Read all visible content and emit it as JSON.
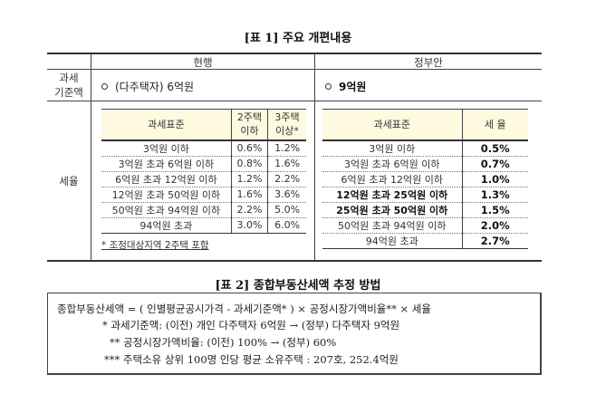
{
  "table1": {
    "title": "[표 1] 주요 개편내용",
    "columns": {
      "label": "",
      "current": "현행",
      "proposed": "정부안"
    },
    "base_row": {
      "label_line1": "과세",
      "label_line2": "기준액",
      "current": "(다주택자) 6억원",
      "proposed": "9억원"
    },
    "rate_row": {
      "label": "세율",
      "current": {
        "headers": {
          "standard": "과세표준",
          "two_line1": "2주택",
          "two_line2": "이하",
          "three_line1": "3주택",
          "three_line2": "이상*"
        },
        "rows": [
          {
            "standard": "3억원 이하",
            "two": "0.6%",
            "three": "1.2%"
          },
          {
            "standard": "3억원 초과 6억원 이하",
            "two": "0.8%",
            "three": "1.6%"
          },
          {
            "standard": "6억원 초과 12억원 이하",
            "two": "1.2%",
            "three": "2.2%"
          },
          {
            "standard": "12억원 초과 50억원 이하",
            "two": "1.6%",
            "three": "3.6%"
          },
          {
            "standard": "50억원 초과 94억원 이하",
            "two": "2.2%",
            "three": "5.0%"
          },
          {
            "standard": "94억원 초과",
            "two": "3.0%",
            "three": "6.0%"
          }
        ],
        "footnote": "* 조정대상지역 2주택 포함"
      },
      "proposed": {
        "headers": {
          "standard": "과세표준",
          "rate": "세 율"
        },
        "rows": [
          {
            "standard": "3억원 이하",
            "rate": "0.5%"
          },
          {
            "standard": "3억원 초과 6억원 이하",
            "rate": "0.7%"
          },
          {
            "standard": "6억원 초과 12억원 이하",
            "rate": "1.0%"
          },
          {
            "standard": "12억원 초과 25억원 이하",
            "rate": "1.3%"
          },
          {
            "standard": "25억원 초과 50억원 이하",
            "rate": "1.5%"
          },
          {
            "standard": "50억원 초과 94억원 이하",
            "rate": "2.0%"
          },
          {
            "standard": "94억원 초과",
            "rate": "2.7%"
          }
        ]
      }
    }
  },
  "table2": {
    "title": "[표 2] 종합부동산세액 추정 방법",
    "formula": "종합부동산세액 = ( 인별평균공시가격 - 과세기준액* ) × 공정시장가액비율** × 세율",
    "notes": [
      "* 과세기준액: (이전) 개인 다주택자 6억원 → (정부) 다주택자 9억원",
      "** 공정시장가액비율: (이전) 100% → (정부) 60%",
      "*** 주택소유 상위 100명 인당 평균 소유주택 : 207호, 252.4억원"
    ]
  },
  "colors": {
    "header_bg": "#fdfae0",
    "border": "#333333"
  }
}
